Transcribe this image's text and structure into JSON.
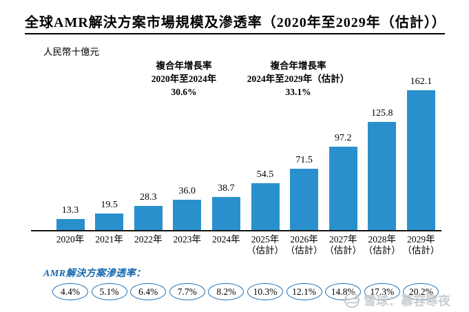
{
  "chart_data": {
    "type": "bar",
    "title": "全球AMR解決方案市場規模及滲透率（2020年至2029年（估計））",
    "unit": "人民幣十億元",
    "categories": [
      "2020年",
      "2021年",
      "2022年",
      "2023年",
      "2024年",
      "2025年",
      "2026年",
      "2027年",
      "2028年",
      "2029年"
    ],
    "category_sublabels": [
      "",
      "",
      "",
      "",
      "",
      "（估計）",
      "（估計）",
      "（估計）",
      "（估計）",
      "（估計）"
    ],
    "values": [
      13.3,
      19.5,
      28.3,
      36.0,
      38.7,
      54.5,
      71.5,
      97.2,
      125.8,
      162.1
    ],
    "display_values": [
      "13.3",
      "19.5",
      "28.3",
      "36.0",
      "38.7",
      "54.5",
      "71.5",
      "97.2",
      "125.8",
      "162.1"
    ],
    "bar_color": "#2A90CD",
    "ylim": [
      0,
      170
    ],
    "grid": false,
    "legend": "none",
    "value_label_position": "above-bars",
    "annotations": [
      {
        "line1": "複合年增長率",
        "line2": "2020年至2024年",
        "value": "30.6%"
      },
      {
        "line1": "複合年增長率",
        "line2": "2024年至2029年（估計）",
        "value": "33.1%"
      }
    ]
  },
  "penetration": {
    "label": "AMR解決方案滲透率：",
    "label_color": "#1667AE",
    "bubble_border_color": "#1E6FB2",
    "values": [
      "4.4%",
      "5.1%",
      "6.4%",
      "7.7%",
      "8.2%",
      "10.3%",
      "12.1%",
      "14.8%",
      "17.3%",
      "20.2%"
    ]
  },
  "watermark": {
    "text": "雪球：慕容寒夜",
    "color": "#C6CACD"
  }
}
